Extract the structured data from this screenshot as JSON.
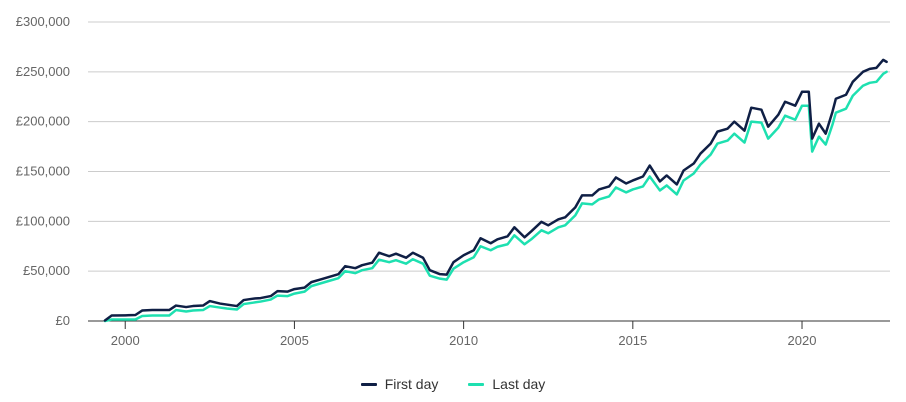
{
  "chart_data": {
    "type": "line",
    "title": "",
    "xlabel": "",
    "ylabel": "",
    "xlim": [
      1998.9,
      2022.6
    ],
    "ylim": [
      0,
      300000
    ],
    "grid": true,
    "legend_position": "bottom-center",
    "x_ticks": [
      2000,
      2005,
      2010,
      2015,
      2020
    ],
    "x_tick_labels": [
      "2000",
      "2005",
      "2010",
      "2015",
      "2020"
    ],
    "y_ticks": [
      0,
      50000,
      100000,
      150000,
      200000,
      250000,
      300000
    ],
    "y_tick_labels": [
      "£0",
      "£50,000",
      "£100,000",
      "£150,000",
      "£200,000",
      "£250,000",
      "£300,000"
    ],
    "series": [
      {
        "name": "First day",
        "color": "#0f1f45",
        "points": [
          [
            1999.4,
            500
          ],
          [
            1999.6,
            5500
          ],
          [
            2000.0,
            5700
          ],
          [
            2000.3,
            6000
          ],
          [
            2000.5,
            10500
          ],
          [
            2000.8,
            11000
          ],
          [
            2001.0,
            11000
          ],
          [
            2001.3,
            11000
          ],
          [
            2001.5,
            15500
          ],
          [
            2001.8,
            14000
          ],
          [
            2002.0,
            15000
          ],
          [
            2002.3,
            15500
          ],
          [
            2002.5,
            20000
          ],
          [
            2002.8,
            17500
          ],
          [
            2003.0,
            16500
          ],
          [
            2003.3,
            15000
          ],
          [
            2003.5,
            21000
          ],
          [
            2003.8,
            22500
          ],
          [
            2004.0,
            23000
          ],
          [
            2004.3,
            25000
          ],
          [
            2004.5,
            30000
          ],
          [
            2004.8,
            29500
          ],
          [
            2005.0,
            32000
          ],
          [
            2005.3,
            33500
          ],
          [
            2005.5,
            39000
          ],
          [
            2005.8,
            42000
          ],
          [
            2006.0,
            44000
          ],
          [
            2006.3,
            47000
          ],
          [
            2006.5,
            55000
          ],
          [
            2006.8,
            53000
          ],
          [
            2007.0,
            56000
          ],
          [
            2007.3,
            58500
          ],
          [
            2007.5,
            68500
          ],
          [
            2007.8,
            65000
          ],
          [
            2008.0,
            67500
          ],
          [
            2008.3,
            63500
          ],
          [
            2008.5,
            68500
          ],
          [
            2008.8,
            63500
          ],
          [
            2009.0,
            51000
          ],
          [
            2009.3,
            47000
          ],
          [
            2009.5,
            46500
          ],
          [
            2009.7,
            59000
          ],
          [
            2010.0,
            66000
          ],
          [
            2010.3,
            71000
          ],
          [
            2010.5,
            83000
          ],
          [
            2010.8,
            78000
          ],
          [
            2011.0,
            82000
          ],
          [
            2011.3,
            85000
          ],
          [
            2011.5,
            94000
          ],
          [
            2011.8,
            84000
          ],
          [
            2012.0,
            90000
          ],
          [
            2012.3,
            99500
          ],
          [
            2012.5,
            96000
          ],
          [
            2012.8,
            102000
          ],
          [
            2013.0,
            104000
          ],
          [
            2013.3,
            114000
          ],
          [
            2013.5,
            126000
          ],
          [
            2013.8,
            126000
          ],
          [
            2014.0,
            132000
          ],
          [
            2014.3,
            135000
          ],
          [
            2014.5,
            144000
          ],
          [
            2014.8,
            138000
          ],
          [
            2015.0,
            141000
          ],
          [
            2015.3,
            145000
          ],
          [
            2015.5,
            156000
          ],
          [
            2015.8,
            140000
          ],
          [
            2016.0,
            146000
          ],
          [
            2016.3,
            137000
          ],
          [
            2016.5,
            151000
          ],
          [
            2016.8,
            158000
          ],
          [
            2017.0,
            168000
          ],
          [
            2017.3,
            178000
          ],
          [
            2017.5,
            190000
          ],
          [
            2017.8,
            193000
          ],
          [
            2018.0,
            200000
          ],
          [
            2018.3,
            191000
          ],
          [
            2018.5,
            214000
          ],
          [
            2018.8,
            212000
          ],
          [
            2019.0,
            195000
          ],
          [
            2019.3,
            207000
          ],
          [
            2019.5,
            220000
          ],
          [
            2019.8,
            216000
          ],
          [
            2020.0,
            230000
          ],
          [
            2020.2,
            230000
          ],
          [
            2020.3,
            183000
          ],
          [
            2020.5,
            198000
          ],
          [
            2020.7,
            188000
          ],
          [
            2020.9,
            210000
          ],
          [
            2021.0,
            223000
          ],
          [
            2021.3,
            227000
          ],
          [
            2021.5,
            240000
          ],
          [
            2021.8,
            250000
          ],
          [
            2022.0,
            253000
          ],
          [
            2022.2,
            254000
          ],
          [
            2022.4,
            262000
          ],
          [
            2022.5,
            260000
          ]
        ]
      },
      {
        "name": "Last day",
        "color": "#1ee0b0",
        "points": [
          [
            1999.4,
            0
          ],
          [
            1999.6,
            1500
          ],
          [
            2000.0,
            1500
          ],
          [
            2000.3,
            1500
          ],
          [
            2000.5,
            5000
          ],
          [
            2000.8,
            5500
          ],
          [
            2001.0,
            5500
          ],
          [
            2001.3,
            5500
          ],
          [
            2001.5,
            11000
          ],
          [
            2001.8,
            9500
          ],
          [
            2002.0,
            10500
          ],
          [
            2002.3,
            11000
          ],
          [
            2002.5,
            15000
          ],
          [
            2002.8,
            13500
          ],
          [
            2003.0,
            12500
          ],
          [
            2003.3,
            11500
          ],
          [
            2003.5,
            17000
          ],
          [
            2003.8,
            18500
          ],
          [
            2004.0,
            19500
          ],
          [
            2004.3,
            21500
          ],
          [
            2004.5,
            25500
          ],
          [
            2004.8,
            25000
          ],
          [
            2005.0,
            27500
          ],
          [
            2005.3,
            29500
          ],
          [
            2005.5,
            35000
          ],
          [
            2005.8,
            38000
          ],
          [
            2006.0,
            40000
          ],
          [
            2006.3,
            43000
          ],
          [
            2006.5,
            50000
          ],
          [
            2006.8,
            48000
          ],
          [
            2007.0,
            51000
          ],
          [
            2007.3,
            53000
          ],
          [
            2007.5,
            61500
          ],
          [
            2007.8,
            59000
          ],
          [
            2008.0,
            61000
          ],
          [
            2008.3,
            57500
          ],
          [
            2008.5,
            62000
          ],
          [
            2008.8,
            57500
          ],
          [
            2009.0,
            45500
          ],
          [
            2009.3,
            42500
          ],
          [
            2009.5,
            41500
          ],
          [
            2009.7,
            52500
          ],
          [
            2010.0,
            59000
          ],
          [
            2010.3,
            64000
          ],
          [
            2010.5,
            75000
          ],
          [
            2010.8,
            71000
          ],
          [
            2011.0,
            74500
          ],
          [
            2011.3,
            77000
          ],
          [
            2011.5,
            86000
          ],
          [
            2011.8,
            77000
          ],
          [
            2012.0,
            82000
          ],
          [
            2012.3,
            91000
          ],
          [
            2012.5,
            88000
          ],
          [
            2012.8,
            94000
          ],
          [
            2013.0,
            96000
          ],
          [
            2013.3,
            106000
          ],
          [
            2013.5,
            118000
          ],
          [
            2013.8,
            117000
          ],
          [
            2014.0,
            122000
          ],
          [
            2014.3,
            125000
          ],
          [
            2014.5,
            134000
          ],
          [
            2014.8,
            129000
          ],
          [
            2015.0,
            132000
          ],
          [
            2015.3,
            135000
          ],
          [
            2015.5,
            145000
          ],
          [
            2015.8,
            131000
          ],
          [
            2016.0,
            136000
          ],
          [
            2016.3,
            127000
          ],
          [
            2016.5,
            141000
          ],
          [
            2016.8,
            148000
          ],
          [
            2017.0,
            157000
          ],
          [
            2017.3,
            167000
          ],
          [
            2017.5,
            178000
          ],
          [
            2017.8,
            181000
          ],
          [
            2018.0,
            188000
          ],
          [
            2018.3,
            179000
          ],
          [
            2018.5,
            200000
          ],
          [
            2018.8,
            199000
          ],
          [
            2019.0,
            183000
          ],
          [
            2019.3,
            194000
          ],
          [
            2019.5,
            206000
          ],
          [
            2019.8,
            202000
          ],
          [
            2020.0,
            216000
          ],
          [
            2020.2,
            216000
          ],
          [
            2020.3,
            170000
          ],
          [
            2020.5,
            185000
          ],
          [
            2020.7,
            177000
          ],
          [
            2020.9,
            197000
          ],
          [
            2021.0,
            209000
          ],
          [
            2021.3,
            213000
          ],
          [
            2021.5,
            226000
          ],
          [
            2021.8,
            236000
          ],
          [
            2022.0,
            239000
          ],
          [
            2022.2,
            240000
          ],
          [
            2022.4,
            248000
          ],
          [
            2022.5,
            250000
          ]
        ]
      }
    ]
  }
}
